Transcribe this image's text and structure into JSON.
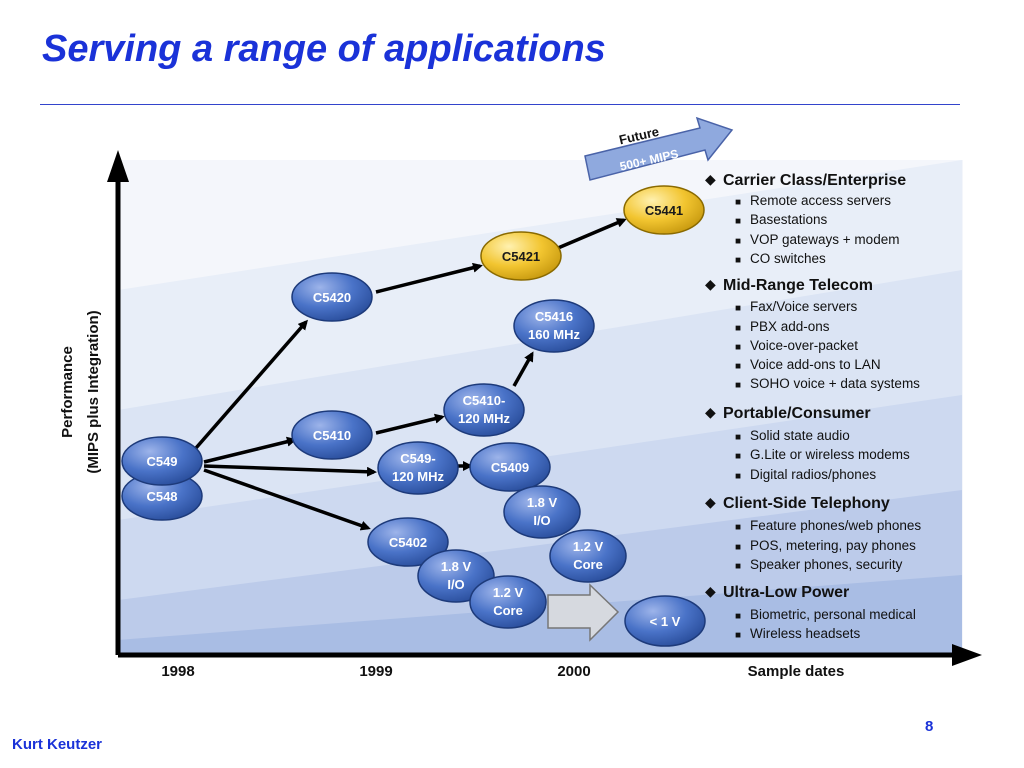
{
  "title": "Serving a range of applications",
  "footer": {
    "author": "Kurt Keutzer",
    "page": "8"
  },
  "diagram": {
    "y_axis_line1": "Performance",
    "y_axis_line2": "(MIPS plus Integration)",
    "x_ticks": [
      "1998",
      "1999",
      "2000"
    ],
    "x_axis_label": "Sample dates",
    "future_label": "Future",
    "future_sub": "500+ MIPS",
    "chips": {
      "c548": "C548",
      "c549": "C549",
      "c5420": "C5420",
      "c5410": "C5410",
      "c549_120_l1": "C549-",
      "c549_120_l2": "120 MHz",
      "c5402": "C5402",
      "c5410_120_l1": "C5410-",
      "c5410_120_l2": "120 MHz",
      "c5409": "C5409",
      "c5416_l1": "C5416",
      "c5416_l2": "160 MHz",
      "io18_a_l1": "1.8 V",
      "io18_a_l2": "I/O",
      "core12_a_l1": "1.2 V",
      "core12_a_l2": "Core",
      "io18_b_l1": "1.8 V",
      "io18_b_l2": "I/O",
      "core12_b_l1": "1.2 V",
      "core12_b_l2": "Core",
      "lt1v": "< 1 V",
      "c5421": "C5421",
      "c5441": "C5441"
    },
    "categories": [
      {
        "name": "Carrier Class/Enterprise",
        "items": [
          "Remote access servers",
          "Basestations",
          "VOP gateways + modem",
          "CO switches"
        ]
      },
      {
        "name": "Mid-Range Telecom",
        "items": [
          "Fax/Voice servers",
          "PBX add-ons",
          "Voice-over-packet",
          "Voice add-ons to LAN",
          "SOHO voice + data systems"
        ]
      },
      {
        "name": "Portable/Consumer",
        "items": [
          "Solid state audio",
          "G.Lite or wireless modems",
          "Digital radios/phones"
        ]
      },
      {
        "name": "Client-Side Telephony",
        "items": [
          "Feature phones/web phones",
          "POS, metering, pay phones",
          "Speaker phones, security"
        ]
      },
      {
        "name": "Ultra-Low Power",
        "items": [
          "Biometric, personal medical",
          "Wireless headsets"
        ]
      }
    ],
    "colors": {
      "chip_blue": "#4a73c8",
      "chip_yellow": "#f2c530",
      "band_light": "#e8eef8",
      "band_mid": "#c9d6ef",
      "accent": "#1a32d8"
    }
  }
}
